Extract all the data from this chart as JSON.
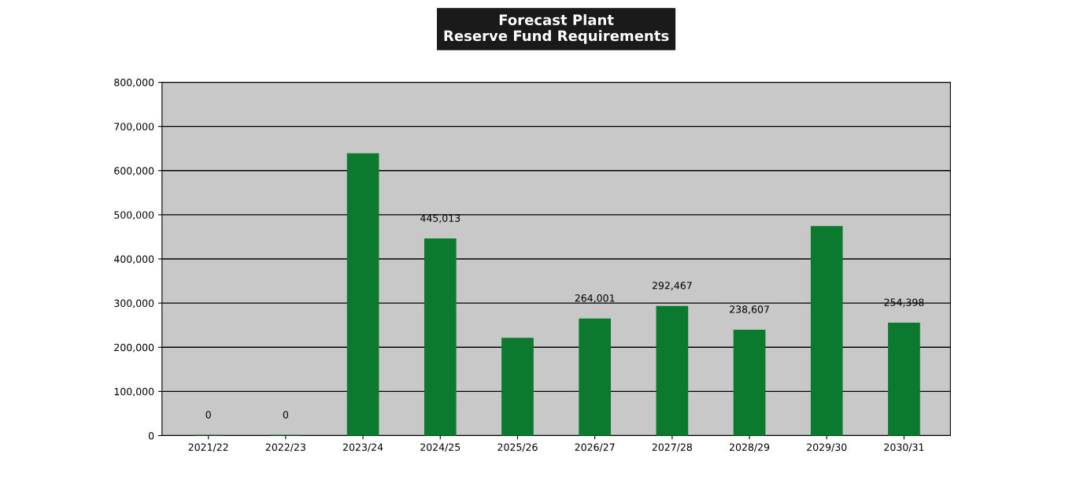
{
  "chart_data": {
    "type": "bar",
    "title": "Forecast Plant\nReserve Fund Requirements",
    "categories": [
      "2021/22",
      "2022/23",
      "2023/24",
      "2024/25",
      "2025/26",
      "2026/27",
      "2027/28",
      "2028/29",
      "2029/30",
      "2030/31"
    ],
    "values": [
      0,
      0,
      638000,
      445013,
      220000,
      264001,
      292467,
      238607,
      473000,
      254398
    ],
    "value_labels": [
      "0",
      "0",
      null,
      "445,013",
      null,
      "264,001",
      "292,467",
      "238,607",
      null,
      "254,398"
    ],
    "color": "#0b7a2e",
    "ylim": [
      0,
      800000
    ],
    "yticks": [
      {
        "value": 0,
        "label": "0"
      },
      {
        "value": 100000,
        "label": "100,000"
      },
      {
        "value": 200000,
        "label": "200,000"
      },
      {
        "value": 300000,
        "label": "300,000"
      },
      {
        "value": 400000,
        "label": "400,000"
      },
      {
        "value": 500000,
        "label": "500,000"
      },
      {
        "value": 600000,
        "label": "600,000"
      },
      {
        "value": 700000,
        "label": "700,000"
      },
      {
        "value": 800000,
        "label": "800,000"
      }
    ],
    "grid": "y",
    "legend": false
  }
}
